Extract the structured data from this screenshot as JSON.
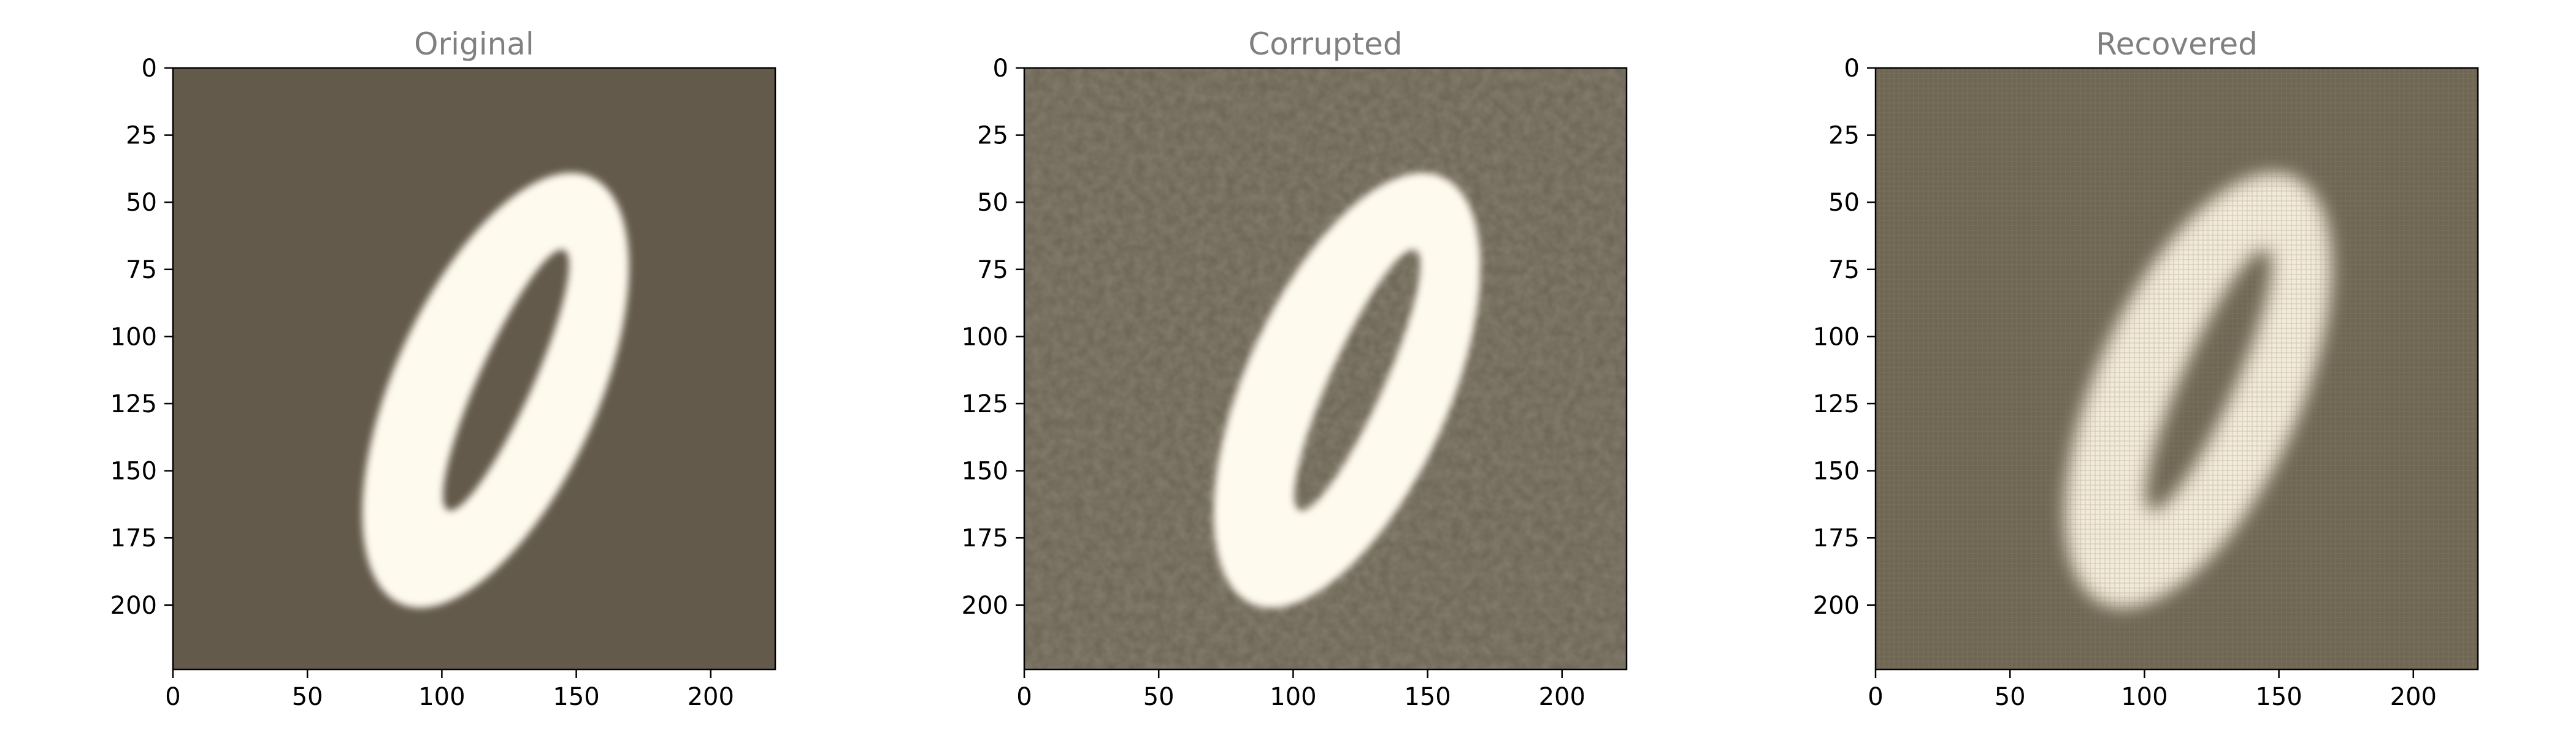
{
  "chart_data": [
    {
      "type": "heatmap",
      "title": "Original",
      "image_variant": "clean",
      "xlim": [
        0,
        224
      ],
      "ylim": [
        224,
        0
      ],
      "xticks": [
        0,
        50,
        100,
        150,
        200
      ],
      "yticks": [
        0,
        25,
        50,
        75,
        100,
        125,
        150,
        175,
        200
      ],
      "xlabel": "",
      "ylabel": ""
    },
    {
      "type": "heatmap",
      "title": "Corrupted",
      "image_variant": "noisy",
      "xlim": [
        0,
        224
      ],
      "ylim": [
        224,
        0
      ],
      "xticks": [
        0,
        50,
        100,
        150,
        200
      ],
      "yticks": [
        0,
        25,
        50,
        75,
        100,
        125,
        150,
        175,
        200
      ],
      "xlabel": "",
      "ylabel": ""
    },
    {
      "type": "heatmap",
      "title": "Recovered",
      "image_variant": "reconstructed",
      "xlim": [
        0,
        224
      ],
      "ylim": [
        224,
        0
      ],
      "xticks": [
        0,
        50,
        100,
        150,
        200
      ],
      "yticks": [
        0,
        25,
        50,
        75,
        100,
        125,
        150,
        175,
        200
      ],
      "xlabel": "",
      "ylabel": ""
    }
  ],
  "colors": {
    "background_dark": "#635a4b",
    "background_noisy": "#6a6252",
    "background_recovered": "#706654",
    "digit_fill": "#fffaee",
    "digit_fill_recovered": "#f3ead8",
    "title_color": "#808080"
  },
  "digit_shape": {
    "description_units": "data",
    "outer_ring": {
      "cx": 120,
      "cy": 120,
      "rx": 38,
      "ry": 87,
      "rotation_deg": 24
    },
    "inner_hole": {
      "cx": 122,
      "cy": 115,
      "rx": 10,
      "ry": 53,
      "rotation_deg": 24
    }
  }
}
